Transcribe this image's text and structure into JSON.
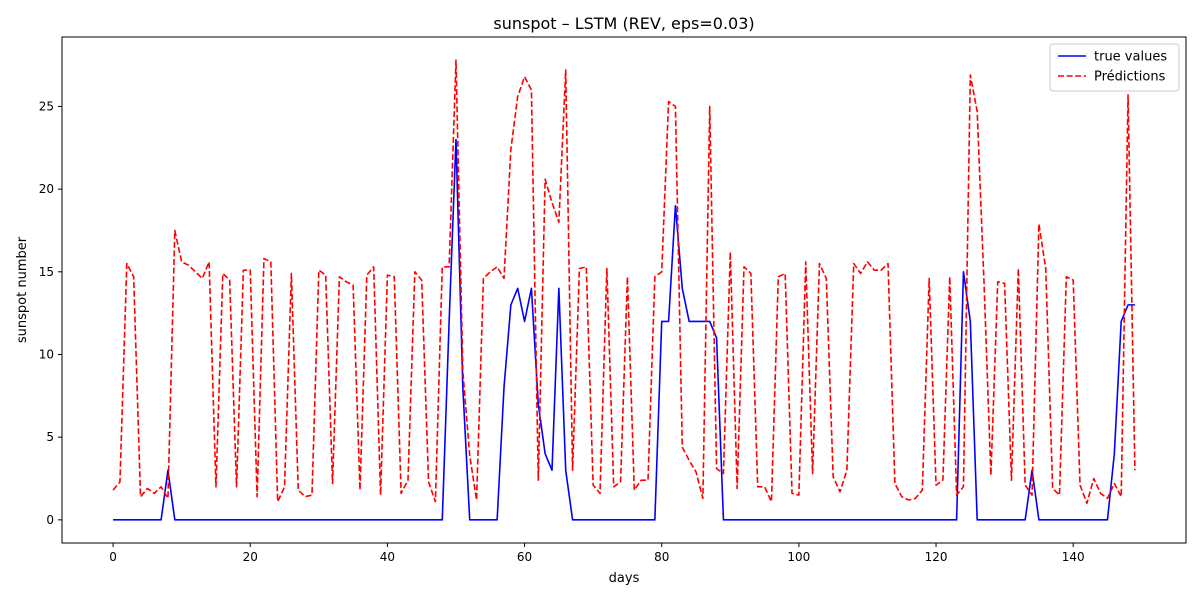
{
  "chart_data": {
    "type": "line",
    "title": "sunspot – LSTM (REV, eps=0.03)",
    "xlabel": "days",
    "ylabel": "sunspot number",
    "xlim": [
      -7.45,
      156.45
    ],
    "ylim": [
      -1.4,
      29.2
    ],
    "xticks": [
      0,
      20,
      40,
      60,
      80,
      100,
      120,
      140
    ],
    "yticks": [
      0,
      5,
      10,
      15,
      20,
      25
    ],
    "grid": false,
    "legend_position": "top-right",
    "series": [
      {
        "name": "true values",
        "color": "#0000ff",
        "style": "solid",
        "x": [
          0,
          1,
          2,
          3,
          4,
          5,
          6,
          7,
          8,
          9,
          10,
          11,
          12,
          13,
          14,
          15,
          16,
          17,
          18,
          19,
          20,
          21,
          22,
          23,
          24,
          25,
          26,
          27,
          28,
          29,
          30,
          31,
          32,
          33,
          34,
          35,
          36,
          37,
          38,
          39,
          40,
          41,
          42,
          43,
          44,
          45,
          46,
          47,
          48,
          49,
          50,
          51,
          52,
          53,
          54,
          55,
          56,
          57,
          58,
          59,
          60,
          61,
          62,
          63,
          64,
          65,
          66,
          67,
          68,
          69,
          70,
          71,
          72,
          73,
          74,
          75,
          76,
          77,
          78,
          79,
          80,
          81,
          82,
          83,
          84,
          85,
          86,
          87,
          88,
          89,
          90,
          91,
          92,
          93,
          94,
          95,
          96,
          97,
          98,
          99,
          100,
          101,
          102,
          103,
          104,
          105,
          106,
          107,
          108,
          109,
          110,
          111,
          112,
          113,
          114,
          115,
          116,
          117,
          118,
          119,
          120,
          121,
          122,
          123,
          124,
          125,
          126,
          127,
          128,
          129,
          130,
          131,
          132,
          133,
          134,
          135,
          136,
          137,
          138,
          139,
          140,
          141,
          142,
          143,
          144,
          145,
          146,
          147,
          148,
          149
        ],
        "y": [
          0,
          0,
          0,
          0,
          0,
          0,
          0,
          0,
          3,
          0,
          0,
          0,
          0,
          0,
          0,
          0,
          0,
          0,
          0,
          0,
          0,
          0,
          0,
          0,
          0,
          0,
          0,
          0,
          0,
          0,
          0,
          0,
          0,
          0,
          0,
          0,
          0,
          0,
          0,
          0,
          0,
          0,
          0,
          0,
          0,
          0,
          0,
          0,
          0,
          12,
          23,
          8,
          0,
          0,
          0,
          0,
          0,
          8,
          13,
          14,
          12,
          14,
          7,
          4,
          3,
          14,
          3,
          0,
          0,
          0,
          0,
          0,
          0,
          0,
          0,
          0,
          0,
          0,
          0,
          0,
          12,
          12,
          19,
          14,
          12,
          12,
          12,
          12,
          11,
          0,
          0,
          0,
          0,
          0,
          0,
          0,
          0,
          0,
          0,
          0,
          0,
          0,
          0,
          0,
          0,
          0,
          0,
          0,
          0,
          0,
          0,
          0,
          0,
          0,
          0,
          0,
          0,
          0,
          0,
          0,
          0,
          0,
          0,
          0,
          15,
          12,
          0,
          0,
          0,
          0,
          0,
          0,
          0,
          0,
          3,
          0,
          0,
          0,
          0,
          0,
          0,
          0,
          0,
          0,
          0,
          0,
          4,
          12,
          13,
          13
        ]
      },
      {
        "name": "Prédictions",
        "color": "#ff0000",
        "style": "dashed",
        "x": [
          0,
          1,
          2,
          3,
          4,
          5,
          6,
          7,
          8,
          9,
          10,
          11,
          12,
          13,
          14,
          15,
          16,
          17,
          18,
          19,
          20,
          21,
          22,
          23,
          24,
          25,
          26,
          27,
          28,
          29,
          30,
          31,
          32,
          33,
          34,
          35,
          36,
          37,
          38,
          39,
          40,
          41,
          42,
          43,
          44,
          45,
          46,
          47,
          48,
          49,
          50,
          51,
          52,
          53,
          54,
          55,
          56,
          57,
          58,
          59,
          60,
          61,
          62,
          63,
          64,
          65,
          66,
          67,
          68,
          69,
          70,
          71,
          72,
          73,
          74,
          75,
          76,
          77,
          78,
          79,
          80,
          81,
          82,
          83,
          84,
          85,
          86,
          87,
          88,
          89,
          90,
          91,
          92,
          93,
          94,
          95,
          96,
          97,
          98,
          99,
          100,
          101,
          102,
          103,
          104,
          105,
          106,
          107,
          108,
          109,
          110,
          111,
          112,
          113,
          114,
          115,
          116,
          117,
          118,
          119,
          120,
          121,
          122,
          123,
          124,
          125,
          126,
          127,
          128,
          129,
          130,
          131,
          132,
          133,
          134,
          135,
          136,
          137,
          138,
          139,
          140,
          141,
          142,
          143,
          144,
          145,
          146,
          147,
          148,
          149
        ],
        "y": [
          1.8,
          2.3,
          15.5,
          14.7,
          1.4,
          1.9,
          1.6,
          2.0,
          1.3,
          17.5,
          15.6,
          15.4,
          15.0,
          14.6,
          15.6,
          2.0,
          14.9,
          14.5,
          2.0,
          15.1,
          15.1,
          1.4,
          15.8,
          15.6,
          1.1,
          2.0,
          14.9,
          1.8,
          1.4,
          1.5,
          15.1,
          14.8,
          2.2,
          14.7,
          14.4,
          14.2,
          1.8,
          14.8,
          15.3,
          1.5,
          14.8,
          14.7,
          1.6,
          2.4,
          15.0,
          14.5,
          2.3,
          1.1,
          15.3,
          15.3,
          27.8,
          9.0,
          3.9,
          1.2,
          14.6,
          15.0,
          15.3,
          14.6,
          22.4,
          25.6,
          26.8,
          26.0,
          2.4,
          20.6,
          19.2,
          18.0,
          27.2,
          3.0,
          15.2,
          15.3,
          2.1,
          1.6,
          15.2,
          2.0,
          2.3,
          14.7,
          1.8,
          2.4,
          2.4,
          14.7,
          15.0,
          25.3,
          25.0,
          4.4,
          3.6,
          2.9,
          1.3,
          25.0,
          3.1,
          2.8,
          16.2,
          1.9,
          15.3,
          14.9,
          2.0,
          2.0,
          1.1,
          14.7,
          14.9,
          1.6,
          1.5,
          15.6,
          2.8,
          15.5,
          14.6,
          2.6,
          1.7,
          3.0,
          15.5,
          14.9,
          15.6,
          15.1,
          15.1,
          15.5,
          2.2,
          1.4,
          1.2,
          1.3,
          1.8,
          14.6,
          2.1,
          2.4,
          14.7,
          1.5,
          2.0,
          26.9,
          24.7,
          14.3,
          2.7,
          14.4,
          14.3,
          2.4,
          15.2,
          2.1,
          1.5,
          17.9,
          15.2,
          1.9,
          1.5,
          14.7,
          14.5,
          2.1,
          1.0,
          2.5,
          1.6,
          1.3,
          2.2,
          1.4,
          25.7,
          3.0
        ]
      }
    ]
  }
}
